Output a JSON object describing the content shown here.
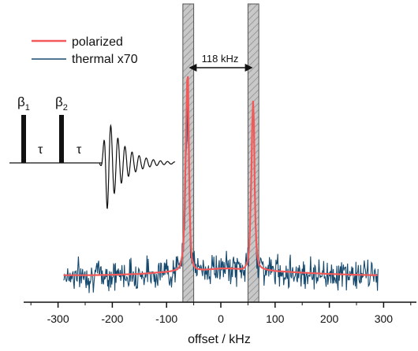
{
  "chart_data": {
    "type": "line",
    "xlabel": "offset / kHz",
    "ylabel": "",
    "xlim": [
      -350,
      350
    ],
    "xticks": [
      -300,
      -200,
      -100,
      0,
      100,
      200,
      300
    ],
    "grid": false,
    "legend_position": "top-left",
    "series": [
      {
        "name": "polarized",
        "color": "#f25a5a",
        "x": [
          -290,
          -250,
          -200,
          -150,
          -120,
          -100,
          -90,
          -80,
          -75,
          -70,
          -67,
          -64,
          -61,
          -59,
          -57,
          -54,
          -50,
          -45,
          -40,
          -30,
          -20,
          -10,
          0,
          10,
          20,
          30,
          40,
          45,
          50,
          53,
          56,
          59,
          61,
          63,
          66,
          70,
          75,
          80,
          90,
          100,
          150,
          200,
          250,
          290
        ],
        "y": [
          -0.18,
          -0.18,
          -0.17,
          -0.15,
          -0.12,
          -0.1,
          -0.08,
          -0.04,
          0.05,
          0.35,
          1.2,
          3.2,
          5.0,
          3.0,
          1.0,
          0.25,
          0.05,
          -0.02,
          -0.04,
          -0.05,
          -0.04,
          -0.03,
          -0.02,
          -0.02,
          -0.02,
          -0.03,
          -0.03,
          0.02,
          0.15,
          0.6,
          2.0,
          4.1,
          3.4,
          1.4,
          0.4,
          0.08,
          0.0,
          -0.03,
          -0.06,
          -0.08,
          -0.12,
          -0.15,
          -0.17,
          -0.18
        ]
      },
      {
        "name": "thermal x70",
        "color": "#15496e",
        "x": [
          -290,
          -250,
          -200,
          -150,
          -120,
          -100,
          -90,
          -80,
          -75,
          -70,
          -67,
          -64,
          -61,
          -59,
          -57,
          -54,
          -50,
          -45,
          -40,
          -30,
          -20,
          -10,
          0,
          10,
          20,
          30,
          40,
          45,
          50,
          53,
          56,
          59,
          61,
          63,
          66,
          70,
          75,
          80,
          90,
          100,
          150,
          200,
          250,
          290
        ],
        "y": [
          -0.18,
          -0.18,
          -0.17,
          -0.15,
          -0.12,
          -0.1,
          -0.08,
          -0.04,
          0.05,
          0.3,
          1.0,
          2.6,
          4.0,
          2.4,
          0.8,
          0.2,
          0.04,
          -0.02,
          -0.04,
          -0.05,
          -0.04,
          -0.03,
          -0.02,
          -0.02,
          -0.02,
          -0.03,
          -0.03,
          0.02,
          0.12,
          0.5,
          1.8,
          3.9,
          3.2,
          1.3,
          0.35,
          0.07,
          0.0,
          -0.03,
          -0.06,
          -0.08,
          -0.12,
          -0.15,
          -0.17,
          -0.18
        ],
        "noise_amplitude": 0.22
      }
    ],
    "shaded_regions": [
      {
        "from": -70,
        "to": -50
      },
      {
        "from": 50,
        "to": 70
      }
    ],
    "annotations": {
      "splitting_label": "118 kHz",
      "splitting_from": -59,
      "splitting_to": 59
    },
    "inset_pulse_sequence": {
      "labels": [
        "β1",
        "τ",
        "β2",
        "τ"
      ],
      "pulse1_label": "β",
      "pulse1_sub": "1",
      "pulse2_label": "β",
      "pulse2_sub": "2",
      "delay_label": "τ"
    }
  }
}
